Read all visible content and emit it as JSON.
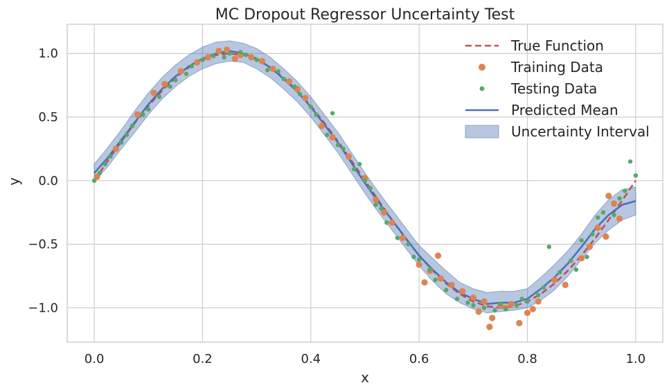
{
  "chart_data": {
    "type": "scatter",
    "title": "MC Dropout Regressor Uncertainty Test",
    "xlabel": "x",
    "ylabel": "y",
    "xlim": [
      -0.05,
      1.05
    ],
    "ylim": [
      -1.27,
      1.23
    ],
    "x_ticks": [
      0.0,
      0.2,
      0.4,
      0.6,
      0.8,
      1.0
    ],
    "y_ticks": [
      -1.0,
      -0.5,
      0.0,
      0.5,
      1.0
    ],
    "x_tick_labels": [
      "0.0",
      "0.2",
      "0.4",
      "0.6",
      "0.8",
      "1.0"
    ],
    "y_tick_labels": [
      "−1.0",
      "−0.5",
      "0.0",
      "0.5",
      "1.0"
    ],
    "grid": true,
    "legend_position": "top-right",
    "colors": {
      "true_function": "#c44e52",
      "training": "#dd8452",
      "testing": "#55a868",
      "mean": "#4c72b0",
      "band": "#4c72b0",
      "grid": "#cccccc",
      "spine": "#cccccc"
    },
    "series": [
      {
        "name": "True Function",
        "kind": "line-dashed",
        "x": [
          0.0,
          0.025,
          0.05,
          0.075,
          0.1,
          0.125,
          0.15,
          0.175,
          0.2,
          0.225,
          0.25,
          0.275,
          0.3,
          0.325,
          0.35,
          0.375,
          0.4,
          0.425,
          0.45,
          0.475,
          0.5,
          0.525,
          0.55,
          0.575,
          0.6,
          0.625,
          0.65,
          0.675,
          0.7,
          0.725,
          0.75,
          0.775,
          0.8,
          0.825,
          0.85,
          0.875,
          0.9,
          0.925,
          0.95,
          0.975,
          1.0
        ],
        "y": [
          0.0,
          0.156,
          0.309,
          0.454,
          0.588,
          0.707,
          0.809,
          0.891,
          0.951,
          0.988,
          1.0,
          0.988,
          0.951,
          0.891,
          0.809,
          0.707,
          0.588,
          0.454,
          0.309,
          0.156,
          0.0,
          -0.156,
          -0.309,
          -0.454,
          -0.588,
          -0.707,
          -0.809,
          -0.891,
          -0.951,
          -0.988,
          -1.0,
          -0.988,
          -0.951,
          -0.891,
          -0.809,
          -0.707,
          -0.588,
          -0.454,
          -0.309,
          -0.156,
          0.0
        ]
      },
      {
        "name": "Training Data",
        "kind": "scatter",
        "x": [
          0.005,
          0.04,
          0.08,
          0.11,
          0.13,
          0.16,
          0.19,
          0.21,
          0.23,
          0.245,
          0.26,
          0.27,
          0.29,
          0.31,
          0.33,
          0.36,
          0.375,
          0.39,
          0.42,
          0.44,
          0.47,
          0.5,
          0.52,
          0.535,
          0.55,
          0.57,
          0.6,
          0.61,
          0.62,
          0.635,
          0.64,
          0.66,
          0.68,
          0.7,
          0.71,
          0.72,
          0.73,
          0.735,
          0.75,
          0.76,
          0.77,
          0.785,
          0.8,
          0.81,
          0.82,
          0.85,
          0.87,
          0.9,
          0.915,
          0.93,
          0.945,
          0.95,
          0.96,
          0.97
        ],
        "y": [
          0.03,
          0.25,
          0.52,
          0.69,
          0.76,
          0.86,
          0.93,
          0.97,
          1.02,
          1.03,
          0.96,
          0.99,
          0.97,
          0.94,
          0.88,
          0.78,
          0.72,
          0.65,
          0.43,
          0.34,
          0.19,
          0.02,
          -0.15,
          -0.25,
          -0.33,
          -0.45,
          -0.66,
          -0.8,
          -0.71,
          -0.59,
          -0.77,
          -0.82,
          -0.87,
          -0.92,
          -1.03,
          -0.95,
          -1.15,
          -1.08,
          -0.98,
          -1.0,
          -0.97,
          -1.12,
          -1.04,
          -1.01,
          -0.95,
          -0.78,
          -0.82,
          -0.61,
          -0.52,
          -0.37,
          -0.44,
          -0.12,
          -0.18,
          -0.3
        ]
      },
      {
        "name": "Testing Data",
        "kind": "scatter",
        "x": [
          0.0,
          0.01,
          0.02,
          0.03,
          0.05,
          0.06,
          0.07,
          0.09,
          0.1,
          0.12,
          0.14,
          0.15,
          0.17,
          0.18,
          0.2,
          0.22,
          0.24,
          0.25,
          0.27,
          0.28,
          0.3,
          0.32,
          0.34,
          0.35,
          0.37,
          0.38,
          0.4,
          0.41,
          0.43,
          0.44,
          0.45,
          0.46,
          0.48,
          0.49,
          0.5,
          0.51,
          0.52,
          0.53,
          0.54,
          0.56,
          0.58,
          0.59,
          0.6,
          0.62,
          0.63,
          0.65,
          0.67,
          0.69,
          0.7,
          0.72,
          0.74,
          0.75,
          0.76,
          0.78,
          0.79,
          0.8,
          0.82,
          0.83,
          0.84,
          0.86,
          0.88,
          0.89,
          0.9,
          0.91,
          0.92,
          0.93,
          0.94,
          0.96,
          0.97,
          0.98,
          0.99,
          1.0
        ],
        "y": [
          0.0,
          0.06,
          0.13,
          0.19,
          0.3,
          0.36,
          0.43,
          0.52,
          0.56,
          0.66,
          0.74,
          0.79,
          0.84,
          0.9,
          0.95,
          0.98,
          0.97,
          1.0,
          1.01,
          0.99,
          0.95,
          0.87,
          0.86,
          0.8,
          0.74,
          0.68,
          0.58,
          0.52,
          0.36,
          0.53,
          0.28,
          0.25,
          0.09,
          0.13,
          0.0,
          -0.06,
          -0.19,
          -0.22,
          -0.33,
          -0.45,
          -0.5,
          -0.6,
          -0.62,
          -0.7,
          -0.78,
          -0.86,
          -0.93,
          -0.96,
          -0.98,
          -1.0,
          -1.02,
          -0.97,
          -1.01,
          -0.98,
          -0.93,
          -0.95,
          -0.9,
          -0.84,
          -0.52,
          -0.72,
          -0.63,
          -0.7,
          -0.47,
          -0.6,
          -0.42,
          -0.29,
          -0.25,
          -0.27,
          -0.14,
          -0.08,
          0.15,
          0.04
        ]
      },
      {
        "name": "Predicted Mean",
        "kind": "line",
        "x": [
          0.0,
          0.025,
          0.05,
          0.075,
          0.1,
          0.125,
          0.15,
          0.175,
          0.2,
          0.225,
          0.25,
          0.275,
          0.3,
          0.325,
          0.35,
          0.375,
          0.4,
          0.425,
          0.45,
          0.475,
          0.5,
          0.525,
          0.55,
          0.575,
          0.6,
          0.625,
          0.65,
          0.675,
          0.7,
          0.725,
          0.75,
          0.775,
          0.8,
          0.825,
          0.85,
          0.875,
          0.9,
          0.925,
          0.95,
          0.975,
          1.0
        ],
        "y": [
          0.06,
          0.18,
          0.32,
          0.46,
          0.6,
          0.72,
          0.82,
          0.9,
          0.96,
          1.0,
          1.02,
          1.0,
          0.96,
          0.89,
          0.8,
          0.7,
          0.58,
          0.44,
          0.3,
          0.14,
          -0.02,
          -0.17,
          -0.31,
          -0.45,
          -0.59,
          -0.7,
          -0.8,
          -0.88,
          -0.93,
          -0.97,
          -0.96,
          -0.96,
          -0.93,
          -0.85,
          -0.76,
          -0.65,
          -0.52,
          -0.38,
          -0.27,
          -0.19,
          -0.16
        ]
      },
      {
        "name": "Uncertainty Interval",
        "kind": "band",
        "x": [
          0.0,
          0.025,
          0.05,
          0.075,
          0.1,
          0.125,
          0.15,
          0.175,
          0.2,
          0.225,
          0.25,
          0.275,
          0.3,
          0.325,
          0.35,
          0.375,
          0.4,
          0.425,
          0.45,
          0.475,
          0.5,
          0.525,
          0.55,
          0.575,
          0.6,
          0.625,
          0.65,
          0.675,
          0.7,
          0.725,
          0.75,
          0.775,
          0.8,
          0.825,
          0.85,
          0.875,
          0.9,
          0.925,
          0.95,
          0.975,
          1.0
        ],
        "lower": [
          -0.01,
          0.11,
          0.25,
          0.38,
          0.52,
          0.64,
          0.74,
          0.82,
          0.88,
          0.92,
          0.94,
          0.93,
          0.88,
          0.81,
          0.72,
          0.62,
          0.5,
          0.36,
          0.22,
          0.06,
          -0.1,
          -0.25,
          -0.39,
          -0.53,
          -0.67,
          -0.79,
          -0.89,
          -0.96,
          -1.01,
          -1.04,
          -1.03,
          -1.02,
          -1.0,
          -0.94,
          -0.86,
          -0.75,
          -0.62,
          -0.49,
          -0.39,
          -0.31,
          -0.27
        ],
        "upper": [
          0.13,
          0.26,
          0.4,
          0.55,
          0.69,
          0.81,
          0.91,
          0.99,
          1.05,
          1.09,
          1.1,
          1.08,
          1.04,
          0.97,
          0.88,
          0.78,
          0.66,
          0.52,
          0.38,
          0.22,
          0.06,
          -0.09,
          -0.23,
          -0.37,
          -0.51,
          -0.61,
          -0.71,
          -0.8,
          -0.85,
          -0.88,
          -0.87,
          -0.87,
          -0.85,
          -0.76,
          -0.66,
          -0.55,
          -0.42,
          -0.27,
          -0.15,
          -0.07,
          -0.05
        ]
      }
    ]
  }
}
